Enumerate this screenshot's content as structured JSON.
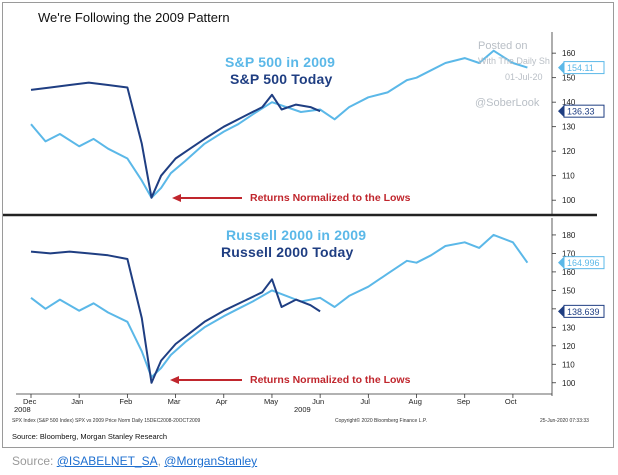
{
  "title": "We're Following the 2009 Pattern",
  "watermark": {
    "line1": "Posted on",
    "line2": "With The Daily Sh",
    "line3": "01-Jul-20",
    "handle": "@SoberLook"
  },
  "panels": {
    "top": {
      "legend_2009": "S&P 500 in 2009",
      "legend_today": "S&P 500 Today",
      "annotation": "Returns Normalized to the Lows",
      "last_2009": "154.11",
      "last_today": "136.33"
    },
    "bottom": {
      "legend_2009": "Russell 2000 in 2009",
      "legend_today": "Russell 2000 Today",
      "annotation": "Returns Normalized to the Lows",
      "last_2009": "164.996",
      "last_today": "138.639"
    }
  },
  "x_axis": {
    "months": [
      "Dec",
      "Jan",
      "Feb",
      "Mar",
      "Apr",
      "May",
      "Jun",
      "Jul",
      "Aug",
      "Sep",
      "Oct"
    ],
    "year_left": "2008",
    "year_right": "2009"
  },
  "footer": {
    "index_line": "SPX Index (S&P 500 Index)  SPX vs 2009 Price Norm  Daily 15DEC2008-20OCT2009",
    "copyright": "Copyright© 2020 Bloomberg Finance L.P.",
    "stamp": "25-Jun-2020 07:33:33",
    "source": "Source: Bloomberg, Morgan Stanley Research"
  },
  "source_line": {
    "prefix": "Source: ",
    "link1": "@ISABELNET_SA",
    "sep": ", ",
    "link2": "@MorganStanley"
  },
  "colors": {
    "series_2009": "#5bb8e8",
    "series_today": "#1f3e82",
    "annotation": "#c0262d",
    "divider": "#222222"
  },
  "chart_data": [
    {
      "type": "line",
      "x": [
        0,
        1,
        2,
        3,
        4,
        5,
        6,
        7,
        8,
        9,
        10
      ],
      "x_tick_labels": [
        "Dec",
        "Jan",
        "Feb",
        "Mar",
        "Apr",
        "May",
        "Jun",
        "Jul",
        "Aug",
        "Sep",
        "Oct"
      ],
      "yticks": [
        100,
        110,
        120,
        130,
        140,
        150,
        160
      ],
      "ylim": [
        96,
        167
      ],
      "series": [
        {
          "name": "S&P 500 in 2009",
          "x": [
            0,
            0.3,
            0.6,
            1,
            1.3,
            1.6,
            2,
            2.3,
            2.5,
            2.7,
            2.9,
            3.2,
            3.6,
            4,
            4.3,
            4.6,
            5,
            5.3,
            5.6,
            6,
            6.3,
            6.6,
            7,
            7.4,
            7.8,
            8,
            8.3,
            8.6,
            9,
            9.3,
            9.6,
            10,
            10.3
          ],
          "values": [
            131,
            124,
            127,
            122,
            125,
            121,
            117,
            108,
            101,
            105,
            111,
            116,
            123,
            128,
            131,
            135,
            140,
            138,
            136,
            137,
            133,
            138,
            142,
            144,
            149,
            150,
            153,
            156,
            158,
            156,
            161,
            156,
            154.11
          ]
        },
        {
          "name": "S&P 500 Today",
          "x": [
            0,
            0.4,
            0.8,
            1.2,
            1.6,
            2,
            2.3,
            2.5,
            2.7,
            3,
            3.3,
            3.6,
            4,
            4.4,
            4.8,
            5,
            5.2,
            5.5,
            5.8,
            6
          ],
          "values": [
            145,
            146,
            147,
            148,
            147,
            146,
            123,
            101,
            110,
            117,
            121,
            125,
            130,
            134,
            138,
            143,
            137,
            139,
            138,
            136.33
          ]
        }
      ]
    },
    {
      "type": "line",
      "x": [
        0,
        1,
        2,
        3,
        4,
        5,
        6,
        7,
        8,
        9,
        10
      ],
      "x_tick_labels": [
        "Dec",
        "Jan",
        "Feb",
        "Mar",
        "Apr",
        "May",
        "Jun",
        "Jul",
        "Aug",
        "Sep",
        "Oct"
      ],
      "yticks": [
        100,
        110,
        120,
        130,
        140,
        150,
        160,
        170,
        180
      ],
      "ylim": [
        95,
        187
      ],
      "series": [
        {
          "name": "Russell 2000 in 2009",
          "x": [
            0,
            0.3,
            0.6,
            1,
            1.3,
            1.6,
            2,
            2.3,
            2.5,
            2.7,
            2.9,
            3.2,
            3.6,
            4,
            4.3,
            4.6,
            5,
            5.3,
            5.6,
            6,
            6.3,
            6.6,
            7,
            7.4,
            7.8,
            8,
            8.3,
            8.6,
            9,
            9.3,
            9.6,
            10,
            10.3
          ],
          "values": [
            146,
            140,
            145,
            139,
            143,
            138,
            133,
            117,
            103,
            108,
            115,
            122,
            130,
            136,
            140,
            144,
            150,
            147,
            144,
            146,
            141,
            147,
            152,
            159,
            166,
            165,
            169,
            174,
            176,
            173,
            180,
            176,
            164.996
          ]
        },
        {
          "name": "Russell 2000 Today",
          "x": [
            0,
            0.4,
            0.8,
            1.2,
            1.6,
            2,
            2.3,
            2.5,
            2.7,
            3,
            3.3,
            3.6,
            4,
            4.4,
            4.8,
            5,
            5.2,
            5.5,
            5.8,
            6
          ],
          "values": [
            171,
            170,
            171,
            170,
            169,
            167,
            135,
            100,
            112,
            121,
            127,
            133,
            139,
            144,
            149,
            156,
            141,
            145,
            142,
            138.639
          ]
        }
      ]
    }
  ]
}
